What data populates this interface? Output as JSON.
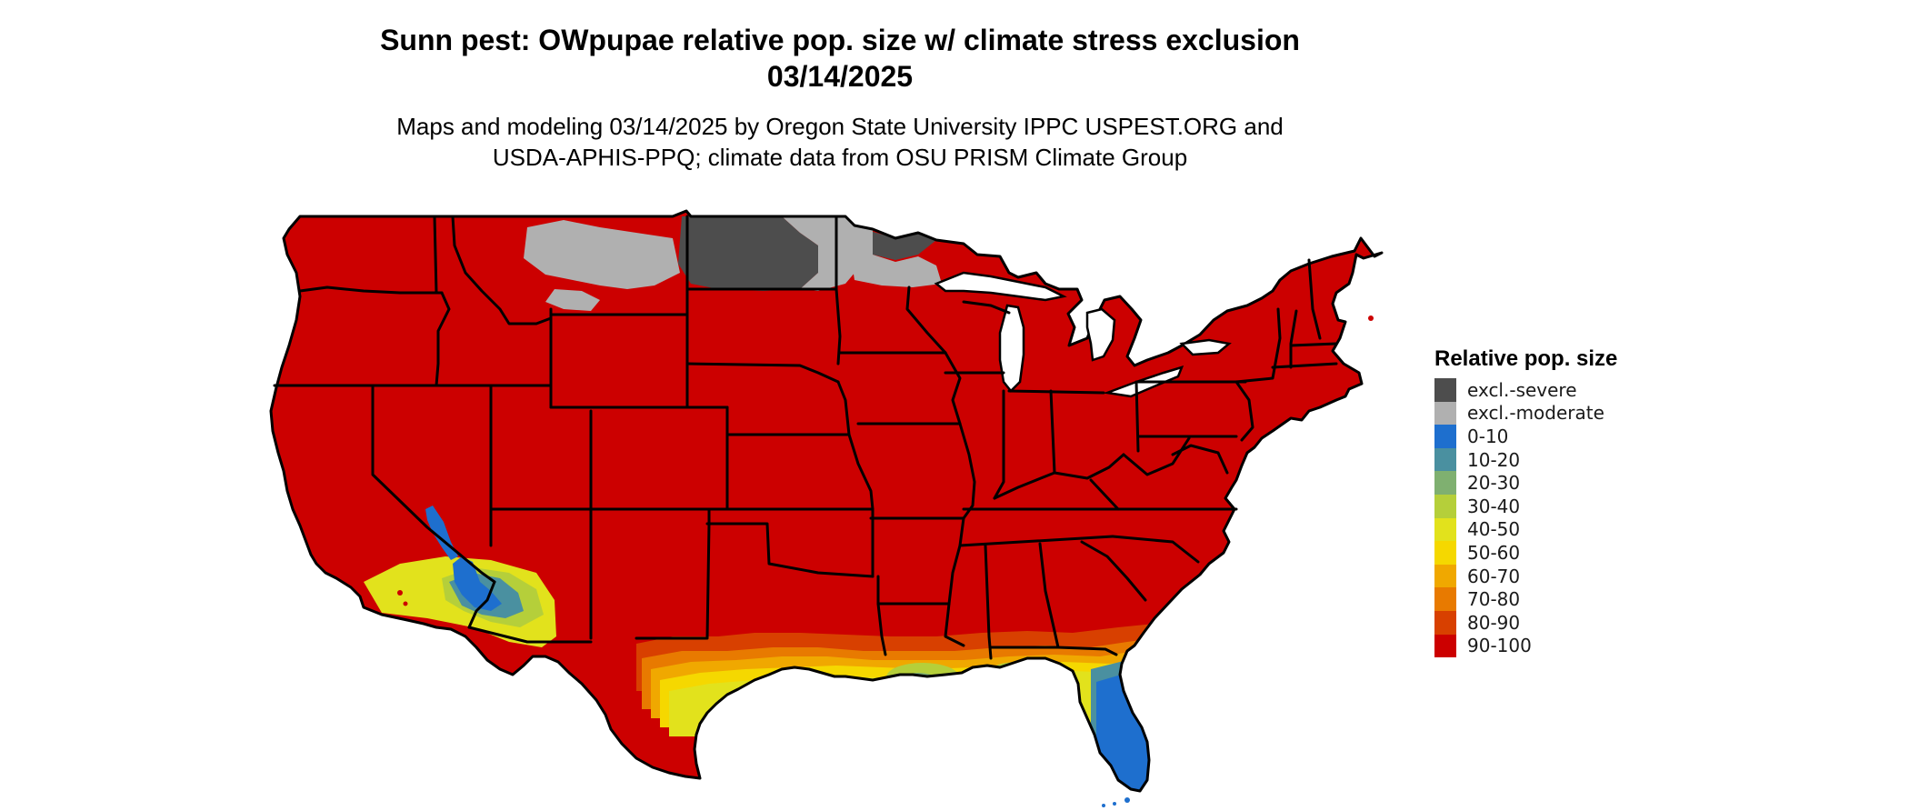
{
  "title": {
    "line1": "Sunn pest: OWpupae relative pop. size w/ climate stress exclusion",
    "line2": "03/14/2025"
  },
  "subtitle": {
    "line1": "Maps and modeling 03/14/2025 by Oregon State University IPPC USPEST.ORG and",
    "line2": "USDA-APHIS-PPQ; climate data from OSU PRISM Climate Group"
  },
  "legend": {
    "title": "Relative pop. size",
    "items": [
      {
        "label": "excl.-severe",
        "color": "#4d4d4d"
      },
      {
        "label": "excl.-moderate",
        "color": "#b0b0b0"
      },
      {
        "label": "0-10",
        "color": "#1e6fce"
      },
      {
        "label": "10-20",
        "color": "#4a90a0"
      },
      {
        "label": "20-30",
        "color": "#7fb070"
      },
      {
        "label": "30-40",
        "color": "#b5cf3a"
      },
      {
        "label": "40-50",
        "color": "#e2e21c"
      },
      {
        "label": "50-60",
        "color": "#f5d800"
      },
      {
        "label": "60-70",
        "color": "#f0a800"
      },
      {
        "label": "70-80",
        "color": "#e87a00"
      },
      {
        "label": "80-90",
        "color": "#d84000"
      },
      {
        "label": "90-100",
        "color": "#cc0000"
      }
    ]
  },
  "map": {
    "region": "Contiguous United States",
    "base_color": "#cc0000",
    "border_color": "#000000"
  }
}
